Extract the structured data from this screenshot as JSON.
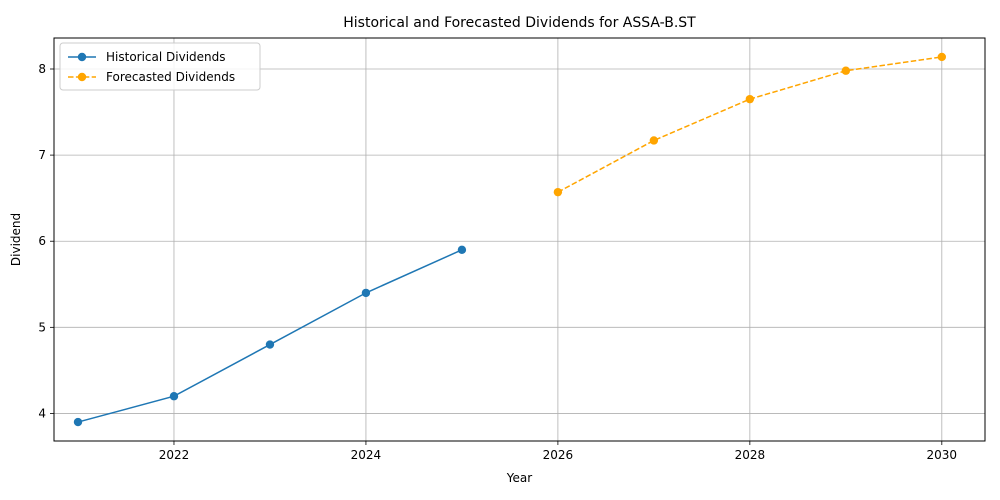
{
  "chart_data": {
    "type": "line",
    "title": "Historical and Forecasted Dividends for ASSA-B.ST",
    "xlabel": "Year",
    "ylabel": "Dividend",
    "xlim": [
      2020.75,
      2030.45
    ],
    "ylim": [
      3.68,
      8.36
    ],
    "xticks": [
      2022,
      2024,
      2026,
      2028,
      2030
    ],
    "yticks": [
      4,
      5,
      6,
      7,
      8
    ],
    "grid": true,
    "legend_position": "top-left",
    "series": [
      {
        "name": "Historical Dividends",
        "color": "#1f77b4",
        "line_style": "solid",
        "marker": "circle",
        "x": [
          2021,
          2022,
          2023,
          2024,
          2025
        ],
        "y": [
          3.9,
          4.2,
          4.8,
          5.4,
          5.9
        ]
      },
      {
        "name": "Forecasted Dividends",
        "color": "#ffa500",
        "line_style": "dashed",
        "marker": "circle",
        "x": [
          2026,
          2027,
          2028,
          2029,
          2030
        ],
        "y": [
          6.57,
          7.17,
          7.65,
          7.98,
          8.14
        ]
      }
    ]
  }
}
